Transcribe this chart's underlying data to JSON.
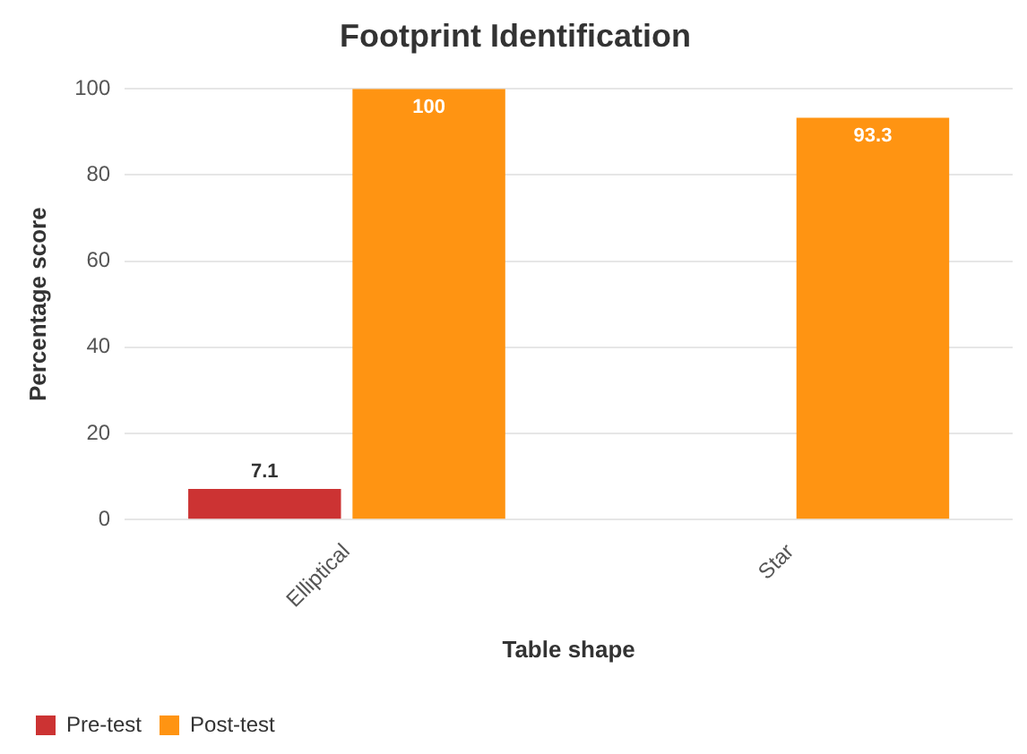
{
  "chart_data": {
    "type": "bar",
    "title": "Footprint Identification",
    "xlabel": "Table shape",
    "ylabel": "Percentage score",
    "categories": [
      "Elliptical",
      "Star"
    ],
    "series": [
      {
        "name": "Pre-test",
        "color": "#cc3333",
        "values": [
          7.1,
          null
        ]
      },
      {
        "name": "Post-test",
        "color": "#ff9412",
        "values": [
          100,
          93.3
        ]
      }
    ],
    "ylim": [
      0,
      100
    ],
    "yticks": [
      0,
      20,
      40,
      60,
      80,
      100
    ],
    "grid": "y",
    "legend": "bottom left",
    "data_labels": true
  }
}
